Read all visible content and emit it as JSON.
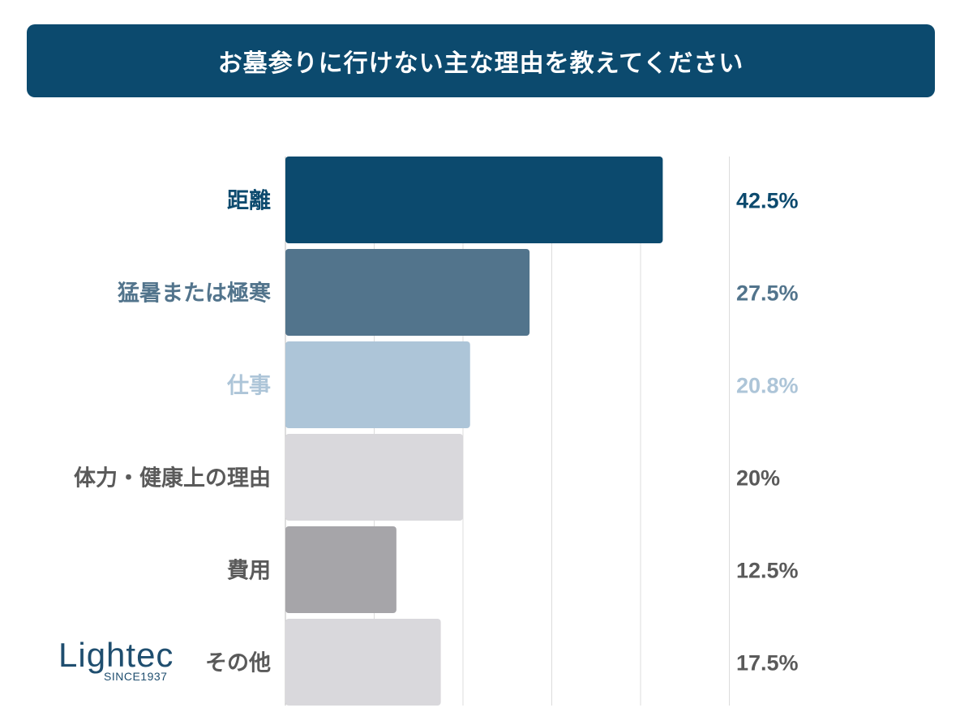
{
  "title": "お墓参りに行けない主な理由を教えてください",
  "logo": {
    "word": "Lightec",
    "since": "SINCE1937"
  },
  "chart_data": {
    "type": "bar",
    "orientation": "horizontal",
    "title": "お墓参りに行けない主な理由を教えてください",
    "categories": [
      "距離",
      "猛暑または極寒",
      "仕事",
      "体力・健康上の理由",
      "費用",
      "その他"
    ],
    "values": [
      42.5,
      27.5,
      20.8,
      20,
      12.5,
      17.5
    ],
    "value_labels": [
      "42.5%",
      "27.5%",
      "20.8%",
      "20%",
      "12.5%",
      "17.5%"
    ],
    "bar_colors": [
      "#0c4a6e",
      "#52748c",
      "#adc5d8",
      "#d9d8dc",
      "#a6a5a9",
      "#d9d8dc"
    ],
    "label_colors": [
      "#0c4a6e",
      "#52748c",
      "#adc5d8",
      "#5a5a5a",
      "#5a5a5a",
      "#5a5a5a"
    ],
    "xlim": [
      0,
      50
    ],
    "grid": true,
    "legend": "none"
  }
}
